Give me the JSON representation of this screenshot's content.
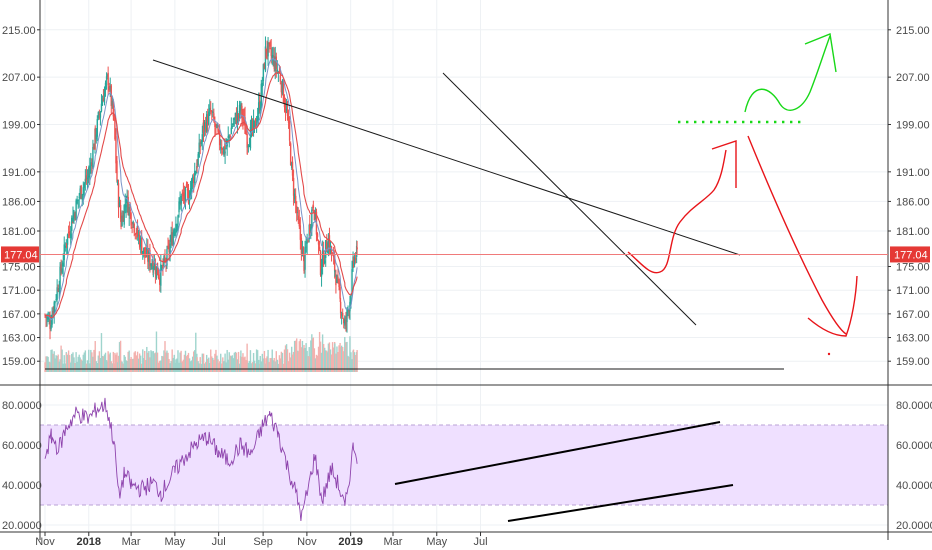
{
  "colors": {
    "up": "#26a69a",
    "down": "#ef5350",
    "vol_up": "#9fd4cd",
    "vol_down": "#f3b1ae",
    "ema_fast": "#7a95c9",
    "ema_slow": "#e34a4a",
    "rsi_line": "#8e44ad",
    "rsi_band": "#efe0ff",
    "price_line": "#f07a7a",
    "annot_red": "#e8151a",
    "annot_green": "#18d818",
    "grid": "#eef1f4",
    "trend": "#1a1a1a"
  },
  "current_price": {
    "value": 177.04,
    "label": "177.04"
  },
  "chart_data": [
    {
      "type": "candlestick",
      "title": "",
      "x": [
        "Nov",
        "2018",
        "Mar",
        "May",
        "Jul",
        "Sep",
        "Nov",
        "2019",
        "Mar",
        "May",
        "Jul"
      ],
      "ylim": [
        156.5,
        217.5
      ],
      "yticks": [
        215,
        207,
        199,
        191,
        186,
        181,
        175,
        171,
        167,
        163,
        159
      ],
      "ytick_labels": [
        "215.00",
        "207.00",
        "199.00",
        "191.00",
        "186.00",
        "181.00",
        "175.00",
        "171.00",
        "167.00",
        "163.00",
        "159.00"
      ],
      "start_date": "2017-11-01",
      "price_anchors": [
        [
          "2017-11-01",
          166.8
        ],
        [
          "2017-11-08",
          165.5
        ],
        [
          "2017-11-15",
          169.5
        ],
        [
          "2017-11-22",
          173.5
        ],
        [
          "2017-12-01",
          179.5
        ],
        [
          "2017-12-10",
          183.5
        ],
        [
          "2017-12-20",
          187.5
        ],
        [
          "2018-01-01",
          190.5
        ],
        [
          "2018-01-10",
          197.0
        ],
        [
          "2018-01-20",
          203.5
        ],
        [
          "2018-01-28",
          206.8
        ],
        [
          "2018-02-05",
          199.5
        ],
        [
          "2018-02-10",
          188.0
        ],
        [
          "2018-02-15",
          182.5
        ],
        [
          "2018-02-22",
          186.5
        ],
        [
          "2018-03-01",
          183.5
        ],
        [
          "2018-03-10",
          180.5
        ],
        [
          "2018-03-20",
          177.0
        ],
        [
          "2018-04-01",
          175.5
        ],
        [
          "2018-04-10",
          173.5
        ],
        [
          "2018-04-20",
          176.5
        ],
        [
          "2018-05-01",
          182.0
        ],
        [
          "2018-05-10",
          186.5
        ],
        [
          "2018-05-20",
          187.0
        ],
        [
          "2018-06-01",
          192.5
        ],
        [
          "2018-06-10",
          198.5
        ],
        [
          "2018-06-20",
          201.0
        ],
        [
          "2018-07-01",
          196.5
        ],
        [
          "2018-07-10",
          194.5
        ],
        [
          "2018-07-20",
          199.0
        ],
        [
          "2018-08-01",
          201.5
        ],
        [
          "2018-08-10",
          196.5
        ],
        [
          "2018-08-20",
          198.5
        ],
        [
          "2018-08-28",
          203.0
        ],
        [
          "2018-09-05",
          212.0
        ],
        [
          "2018-09-15",
          210.0
        ],
        [
          "2018-09-25",
          207.0
        ],
        [
          "2018-10-05",
          200.0
        ],
        [
          "2018-10-12",
          189.5
        ],
        [
          "2018-10-20",
          182.0
        ],
        [
          "2018-10-28",
          175.5
        ],
        [
          "2018-11-05",
          182.0
        ],
        [
          "2018-11-10",
          186.0
        ],
        [
          "2018-11-20",
          175.0
        ],
        [
          "2018-12-01",
          179.5
        ],
        [
          "2018-12-10",
          174.5
        ],
        [
          "2018-12-18",
          168.5
        ],
        [
          "2018-12-24",
          165.0
        ],
        [
          "2018-12-31",
          169.5
        ],
        [
          "2019-01-05",
          176.0
        ],
        [
          "2019-01-10",
          177.04
        ]
      ],
      "volume_ylim": [
        0,
        12
      ]
    },
    {
      "type": "line",
      "title": "",
      "ylim": [
        17.5,
        86.5
      ],
      "yticks": [
        80,
        60,
        40,
        20
      ],
      "ytick_labels": [
        "80.0000",
        "60.0000",
        "40.0000",
        "20.0000"
      ],
      "band": [
        30,
        70
      ],
      "rsi_anchors": [
        [
          "2017-11-01",
          55
        ],
        [
          "2017-11-10",
          64
        ],
        [
          "2017-11-20",
          58
        ],
        [
          "2017-12-01",
          69
        ],
        [
          "2017-12-15",
          76
        ],
        [
          "2018-01-01",
          73
        ],
        [
          "2018-01-12",
          78
        ],
        [
          "2018-01-25",
          80
        ],
        [
          "2018-02-05",
          62
        ],
        [
          "2018-02-12",
          34
        ],
        [
          "2018-02-20",
          46
        ],
        [
          "2018-03-01",
          40
        ],
        [
          "2018-03-15",
          38
        ],
        [
          "2018-04-01",
          41
        ],
        [
          "2018-04-12",
          36
        ],
        [
          "2018-05-01",
          47
        ],
        [
          "2018-05-15",
          54
        ],
        [
          "2018-06-01",
          61
        ],
        [
          "2018-06-15",
          64
        ],
        [
          "2018-07-01",
          56
        ],
        [
          "2018-07-15",
          52
        ],
        [
          "2018-08-01",
          60
        ],
        [
          "2018-08-15",
          55
        ],
        [
          "2018-09-01",
          70
        ],
        [
          "2018-09-10",
          75
        ],
        [
          "2018-09-22",
          66
        ],
        [
          "2018-10-05",
          49
        ],
        [
          "2018-10-15",
          38
        ],
        [
          "2018-10-25",
          24
        ],
        [
          "2018-11-05",
          42
        ],
        [
          "2018-11-12",
          55
        ],
        [
          "2018-11-22",
          32
        ],
        [
          "2018-12-05",
          48
        ],
        [
          "2018-12-15",
          40
        ],
        [
          "2018-12-24",
          28
        ],
        [
          "2018-12-31",
          46
        ],
        [
          "2019-01-05",
          60
        ],
        [
          "2019-01-10",
          55
        ]
      ]
    }
  ]
}
